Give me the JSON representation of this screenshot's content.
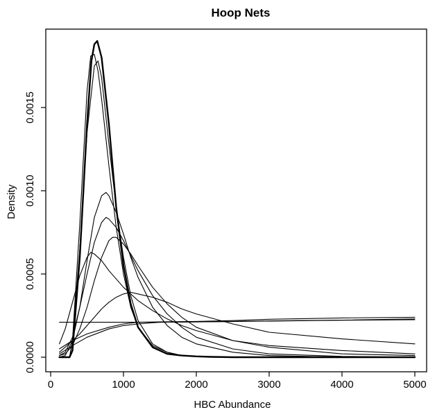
{
  "chart_data": {
    "type": "line",
    "title": "Hoop Nets",
    "xlabel": "HBC Abundance",
    "ylabel": "Density",
    "xlim": [
      0,
      5200
    ],
    "ylim": [
      0,
      0.00195
    ],
    "grid": false,
    "legend": "none",
    "x_ticks": [
      0,
      1000,
      2000,
      3000,
      4000,
      5000
    ],
    "x_tick_labels": [
      "0",
      "1000",
      "2000",
      "3000",
      "4000",
      "5000"
    ],
    "y_ticks": [
      0.0,
      0.0005,
      0.001,
      0.0015
    ],
    "y_tick_labels": [
      "0.0000",
      "0.0005",
      "0.0010",
      "0.0015"
    ],
    "line_color": "#000000",
    "series": [
      {
        "x": [
          120,
          200,
          260,
          300,
          400,
          500,
          560,
          600,
          640,
          700,
          800,
          900,
          1000,
          1100,
          1200,
          1400,
          1600,
          1800,
          2000,
          2200,
          2500,
          3000,
          4000,
          5000
        ],
        "y": [
          0,
          0,
          0,
          4e-05,
          0.0006,
          0.0014,
          0.00178,
          0.00188,
          0.0019,
          0.0018,
          0.0014,
          0.0009,
          0.00055,
          0.00032,
          0.00018,
          6e-05,
          2e-05,
          1e-05,
          5e-06,
          2e-06,
          0,
          0,
          0,
          0
        ]
      },
      {
        "x": [
          120,
          200,
          260,
          300,
          400,
          500,
          560,
          600,
          640,
          700,
          800,
          900,
          1000,
          1100,
          1200,
          1400,
          1600,
          1800,
          2000,
          2200,
          2500,
          3000,
          4000,
          5000
        ],
        "y": [
          0,
          0,
          0,
          4e-05,
          0.0006,
          0.0014,
          0.00178,
          0.00188,
          0.0019,
          0.0018,
          0.0014,
          0.0009,
          0.00055,
          0.00032,
          0.00018,
          6e-05,
          2e-05,
          1e-05,
          5e-06,
          2e-06,
          0,
          0,
          0,
          0
        ]
      },
      {
        "x": [
          120,
          200,
          260,
          300,
          400,
          500,
          560,
          600,
          640,
          700,
          800,
          900,
          1000,
          1100,
          1200,
          1400,
          1600,
          1800,
          2000,
          2200,
          2500,
          3000,
          4000,
          5000
        ],
        "y": [
          0,
          0,
          0,
          4e-05,
          0.0006,
          0.0014,
          0.00178,
          0.00188,
          0.0019,
          0.0018,
          0.0014,
          0.0009,
          0.00055,
          0.00032,
          0.00018,
          6e-05,
          2e-05,
          1e-05,
          5e-06,
          2e-06,
          0,
          0,
          0,
          0
        ]
      },
      {
        "x": [
          120,
          200,
          260,
          300,
          400,
          500,
          550,
          600,
          650,
          700,
          800,
          900,
          1000,
          1100,
          1200,
          1400,
          1600,
          1800,
          2000,
          2500,
          3000,
          4000,
          5000
        ],
        "y": [
          0,
          0,
          0,
          0.0001,
          0.0008,
          0.0016,
          0.00181,
          0.00182,
          0.00172,
          0.00155,
          0.00115,
          0.00078,
          0.0005,
          0.0003,
          0.00018,
          7e-05,
          3e-05,
          1e-05,
          5e-06,
          0,
          0,
          0,
          0
        ]
      },
      {
        "x": [
          120,
          200,
          260,
          300,
          400,
          500,
          600,
          650,
          700,
          800,
          900,
          1000,
          1100,
          1200,
          1400,
          1600,
          1800,
          2000,
          2500,
          3000,
          4000,
          5000
        ],
        "y": [
          0,
          0,
          0,
          0.0001,
          0.00065,
          0.00135,
          0.00175,
          0.00178,
          0.00168,
          0.00128,
          0.0009,
          0.0006,
          0.00037,
          0.00022,
          8e-05,
          3e-05,
          1e-05,
          5e-06,
          0,
          0,
          0,
          0
        ]
      },
      {
        "x": [
          120,
          200,
          300,
          400,
          500,
          600,
          700,
          760,
          800,
          900,
          1000,
          1100,
          1200,
          1400,
          1600,
          1800,
          2000,
          2500,
          3000,
          4000,
          5000
        ],
        "y": [
          0,
          1e-05,
          0.0001,
          0.0003,
          0.00058,
          0.00084,
          0.00097,
          0.00099,
          0.00097,
          0.00087,
          0.00074,
          0.0006,
          0.00048,
          0.0003,
          0.00019,
          0.00012,
          8e-05,
          3e-05,
          1e-05,
          0,
          0
        ]
      },
      {
        "x": [
          120,
          200,
          300,
          400,
          500,
          600,
          700,
          760,
          800,
          900,
          1000,
          1100,
          1200,
          1400,
          1600,
          1800,
          2000,
          2500,
          3000,
          4000,
          5000
        ],
        "y": [
          1e-05,
          3e-05,
          0.00012,
          0.0003,
          0.0005,
          0.00069,
          0.00081,
          0.00084,
          0.00083,
          0.00078,
          0.0007,
          0.00061,
          0.00052,
          0.00037,
          0.00026,
          0.00018,
          0.00012,
          5e-05,
          2e-05,
          5e-06,
          0
        ]
      },
      {
        "x": [
          120,
          200,
          300,
          400,
          500,
          600,
          700,
          800,
          850,
          900,
          1000,
          1100,
          1200,
          1400,
          1600,
          1800,
          2000,
          2500,
          3000,
          4000,
          5000
        ],
        "y": [
          1e-05,
          2e-05,
          7e-05,
          0.00017,
          0.0003,
          0.00046,
          0.0006,
          0.0007,
          0.00072,
          0.00072,
          0.00068,
          0.00062,
          0.00055,
          0.00042,
          0.00032,
          0.00024,
          0.00018,
          0.0001,
          6e-05,
          2e-05,
          1e-05
        ]
      },
      {
        "x": [
          120,
          200,
          300,
          400,
          500,
          550,
          600,
          700,
          800,
          900,
          1000,
          1200,
          1400,
          1600,
          1800,
          2000,
          2500,
          3000,
          4000,
          5000
        ],
        "y": [
          8e-05,
          0.00017,
          0.00033,
          0.00049,
          0.0006,
          0.00063,
          0.00062,
          0.00058,
          0.00052,
          0.00047,
          0.00042,
          0.00034,
          0.00028,
          0.00023,
          0.00019,
          0.00016,
          0.0001,
          7e-05,
          4e-05,
          2e-05
        ]
      },
      {
        "x": [
          120,
          200,
          300,
          400,
          500,
          600,
          700,
          800,
          900,
          1000,
          1100,
          1200,
          1400,
          1600,
          1800,
          2000,
          2500,
          3000,
          4000,
          5000
        ],
        "y": [
          3e-05,
          6e-05,
          0.0001,
          0.00014,
          0.00019,
          0.00024,
          0.00029,
          0.00033,
          0.00036,
          0.00038,
          0.00039,
          0.00038,
          0.00036,
          0.00033,
          0.00029,
          0.00026,
          0.0002,
          0.00015,
          0.00011,
          8e-05
        ]
      },
      {
        "x": [
          120,
          500,
          1000,
          1500,
          2000,
          2500,
          3000,
          4000,
          5000
        ],
        "y": [
          0.00021,
          0.00021,
          0.00021,
          0.00021,
          0.000212,
          0.000214,
          0.000217,
          0.000222,
          0.000225
        ]
      },
      {
        "x": [
          120,
          300,
          500,
          800,
          1000,
          1200,
          1500,
          2000,
          2500,
          3000,
          4000,
          5000
        ],
        "y": [
          2e-05,
          7e-05,
          0.00012,
          0.00017,
          0.00019,
          0.0002,
          0.00021,
          0.000212,
          0.000215,
          0.000218,
          0.000223,
          0.00023
        ]
      },
      {
        "x": [
          120,
          300,
          500,
          800,
          1000,
          1200,
          1500,
          2000,
          2500,
          3000,
          4000,
          5000
        ],
        "y": [
          5e-05,
          0.0001,
          0.00014,
          0.00018,
          0.0002,
          0.00021,
          0.000212,
          0.000215,
          0.00022,
          0.000228,
          0.000236,
          0.00024
        ]
      }
    ]
  }
}
